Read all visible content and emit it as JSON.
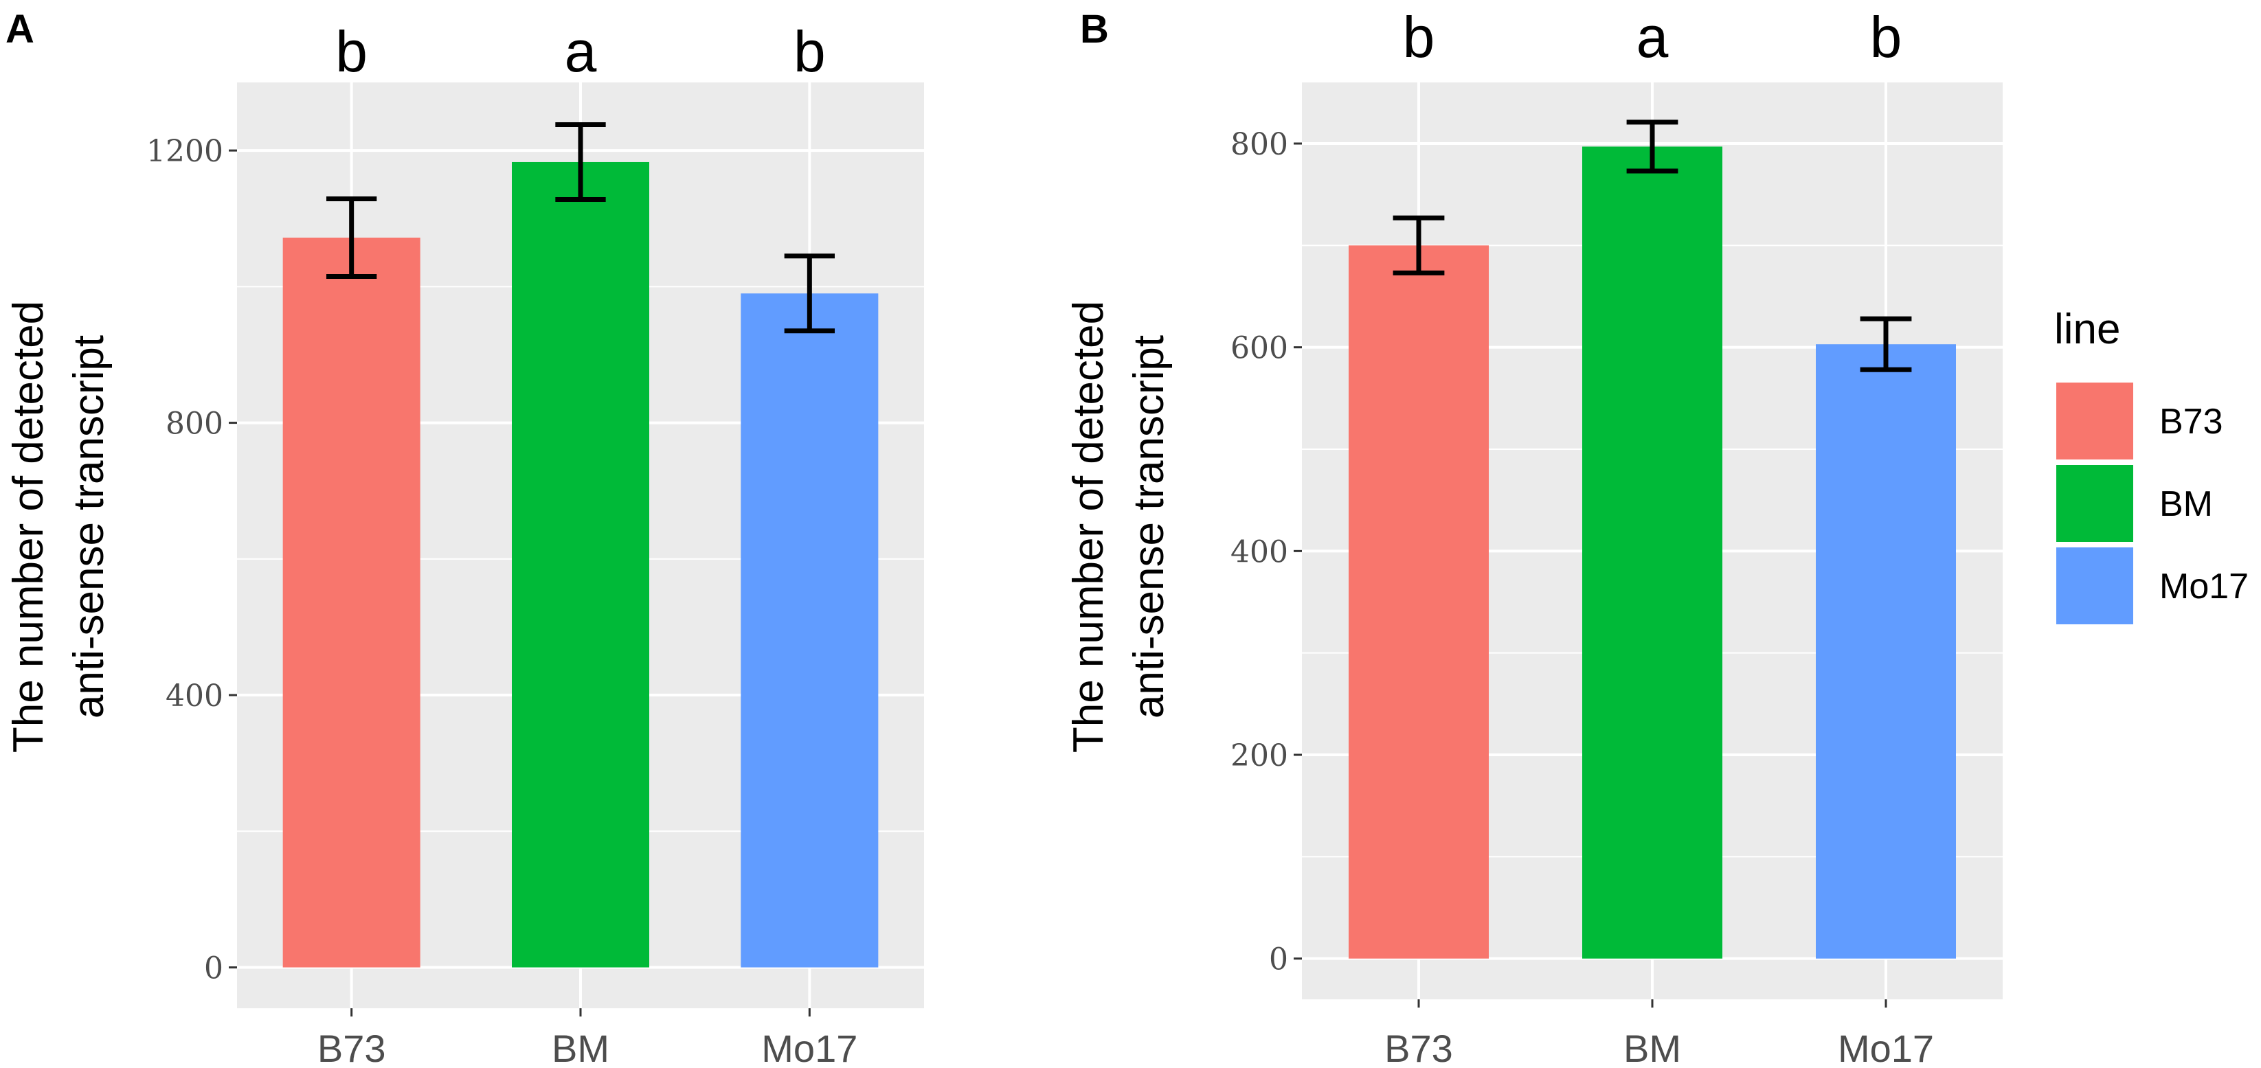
{
  "chart_data": [
    {
      "panel_label": "A",
      "type": "bar",
      "categories": [
        "B73",
        "BM",
        "Mo17"
      ],
      "values": [
        1072,
        1183,
        990
      ],
      "errors": [
        57,
        55,
        55
      ],
      "significance": [
        "b",
        "a",
        "b"
      ],
      "ylabel_lines": [
        "The number of detected",
        "anti-sense transcript"
      ],
      "xlabel": "",
      "ylim": [
        -60,
        1300
      ],
      "yticks": [
        0,
        400,
        800,
        1200
      ],
      "grid": true
    },
    {
      "panel_label": "B",
      "type": "bar",
      "categories": [
        "B73",
        "BM",
        "Mo17"
      ],
      "values": [
        700,
        797,
        603
      ],
      "errors": [
        27,
        24,
        25
      ],
      "significance": [
        "b",
        "a",
        "b"
      ],
      "ylabel_lines": [
        "The number of detected",
        "anti-sense transcript"
      ],
      "xlabel": "",
      "ylim": [
        -40,
        860
      ],
      "yticks": [
        0,
        200,
        400,
        600,
        800
      ],
      "grid": true
    }
  ],
  "legend": {
    "title": "line",
    "position": "right",
    "items": [
      {
        "label": "B73",
        "color": "#F8766D"
      },
      {
        "label": "BM",
        "color": "#00BA38"
      },
      {
        "label": "Mo17",
        "color": "#619CFF"
      }
    ]
  },
  "colors": {
    "panel_bg": "#EBEBEB",
    "grid": "#FFFFFF",
    "error_bar": "#000000",
    "tick": "#333333"
  }
}
